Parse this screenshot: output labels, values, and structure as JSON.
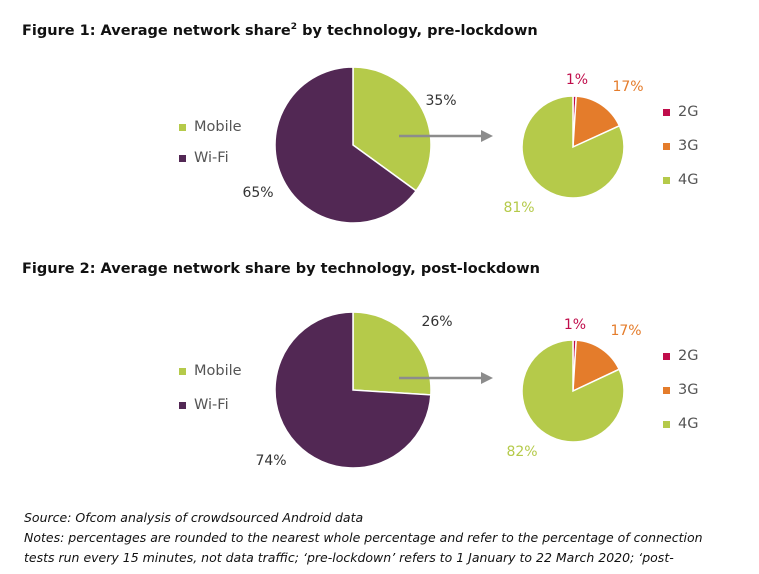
{
  "source": "Source: Ofcom analysis of crowdsourced Android data",
  "notes": [
    "Notes: percentages are rounded to the nearest whole percentage and refer to the percentage of connection",
    "tests run every 15 minutes, not data traffic; ‘pre-lockdown’ refers to 1 January to 22 March 2020; ‘post-"
  ],
  "colors": {
    "mobile": "#b5ca4a",
    "wifi": "#522854",
    "g2": "#c00d4b",
    "g3": "#e47c2b",
    "g4": "#b5ca4a",
    "arrow": "#8c8c8c"
  },
  "chart_data": [
    {
      "type": "pie",
      "title": "Figure 1: Average network share",
      "title_superscript": "2",
      "title_suffix": " by technology, pre-lockdown",
      "network": {
        "labels": [
          "Mobile",
          "Wi-Fi"
        ],
        "values": [
          35,
          65
        ],
        "value_labels": [
          "35%",
          "65%"
        ]
      },
      "mobile_breakdown": {
        "labels": [
          "2G",
          "3G",
          "4G"
        ],
        "values": [
          1,
          17,
          81
        ],
        "value_labels": [
          "1%",
          "17%",
          "81%"
        ]
      }
    },
    {
      "type": "pie",
      "title": "Figure 2: Average network share by technology, post-lockdown",
      "network": {
        "labels": [
          "Mobile",
          "Wi-Fi"
        ],
        "values": [
          26,
          74
        ],
        "value_labels": [
          "26%",
          "74%"
        ]
      },
      "mobile_breakdown": {
        "labels": [
          "2G",
          "3G",
          "4G"
        ],
        "values": [
          1,
          17,
          82
        ],
        "value_labels": [
          "1%",
          "17%",
          "82%"
        ]
      }
    }
  ]
}
